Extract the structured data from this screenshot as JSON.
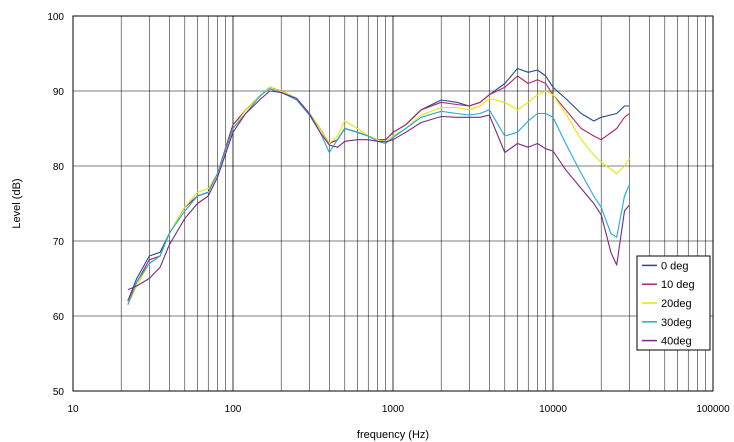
{
  "chart_data": {
    "type": "line",
    "title": "",
    "xlabel": "frequency (Hz)",
    "ylabel": "Level (dB)",
    "x_scale": "log",
    "xlim": [
      10,
      100000
    ],
    "ylim": [
      50,
      100
    ],
    "grid": true,
    "legend_position": "bottom-right",
    "x_ticks": [
      10,
      100,
      1000,
      10000,
      100000
    ],
    "x_tick_labels": [
      "10",
      "100",
      "1000",
      "10000",
      "100000"
    ],
    "y_ticks": [
      50,
      60,
      70,
      80,
      90,
      100
    ],
    "y_tick_labels": [
      "50",
      "60",
      "70",
      "80",
      "90",
      "100"
    ],
    "series": [
      {
        "name": "0 deg",
        "color": "#1f4e8c",
        "points": [
          [
            22,
            62
          ],
          [
            25,
            65
          ],
          [
            30,
            68
          ],
          [
            35,
            68.5
          ],
          [
            40,
            71
          ],
          [
            50,
            74.5
          ],
          [
            60,
            76
          ],
          [
            70,
            76.5
          ],
          [
            80,
            79
          ],
          [
            100,
            85.5
          ],
          [
            120,
            87.5
          ],
          [
            150,
            89.5
          ],
          [
            170,
            90.5
          ],
          [
            200,
            90
          ],
          [
            250,
            89
          ],
          [
            300,
            87
          ],
          [
            350,
            85
          ],
          [
            400,
            83
          ],
          [
            450,
            83.5
          ],
          [
            500,
            85
          ],
          [
            600,
            84.5
          ],
          [
            700,
            84
          ],
          [
            800,
            83.5
          ],
          [
            900,
            83.5
          ],
          [
            1000,
            84.5
          ],
          [
            1200,
            85.5
          ],
          [
            1500,
            87.5
          ],
          [
            2000,
            88.8
          ],
          [
            2500,
            88.5
          ],
          [
            3000,
            88
          ],
          [
            3500,
            88.5
          ],
          [
            4000,
            89.5
          ],
          [
            5000,
            91
          ],
          [
            6000,
            93
          ],
          [
            7000,
            92.5
          ],
          [
            8000,
            92.8
          ],
          [
            9000,
            92
          ],
          [
            10000,
            90.5
          ],
          [
            12000,
            89
          ],
          [
            15000,
            87
          ],
          [
            18000,
            86
          ],
          [
            20000,
            86.5
          ],
          [
            25000,
            87
          ],
          [
            28000,
            88
          ],
          [
            30000,
            88
          ]
        ]
      },
      {
        "name": "10 deg",
        "color": "#b3256b",
        "points": [
          [
            22,
            62
          ],
          [
            25,
            64.5
          ],
          [
            30,
            67.5
          ],
          [
            35,
            68
          ],
          [
            40,
            71
          ],
          [
            50,
            74.5
          ],
          [
            60,
            76
          ],
          [
            70,
            76.5
          ],
          [
            80,
            79
          ],
          [
            100,
            85.5
          ],
          [
            120,
            87.5
          ],
          [
            150,
            89.5
          ],
          [
            170,
            90.5
          ],
          [
            200,
            90
          ],
          [
            250,
            89
          ],
          [
            300,
            87
          ],
          [
            350,
            85
          ],
          [
            400,
            83
          ],
          [
            450,
            83.5
          ],
          [
            500,
            85
          ],
          [
            600,
            84.5
          ],
          [
            700,
            84
          ],
          [
            800,
            83.5
          ],
          [
            900,
            83.5
          ],
          [
            1000,
            84.5
          ],
          [
            1200,
            85.5
          ],
          [
            1500,
            87.5
          ],
          [
            2000,
            88.5
          ],
          [
            2500,
            88.2
          ],
          [
            3000,
            88
          ],
          [
            3500,
            88.5
          ],
          [
            4000,
            89.5
          ],
          [
            5000,
            90.5
          ],
          [
            6000,
            92
          ],
          [
            7000,
            91
          ],
          [
            8000,
            91.5
          ],
          [
            9000,
            91
          ],
          [
            10000,
            89.5
          ],
          [
            12000,
            87.5
          ],
          [
            15000,
            85
          ],
          [
            18000,
            84
          ],
          [
            20000,
            83.5
          ],
          [
            25000,
            85
          ],
          [
            28000,
            86.5
          ],
          [
            30000,
            87
          ]
        ]
      },
      {
        "name": "20deg",
        "color": "#e6e600",
        "points": [
          [
            22,
            61.5
          ],
          [
            25,
            64
          ],
          [
            30,
            67
          ],
          [
            35,
            68
          ],
          [
            40,
            71
          ],
          [
            50,
            74.5
          ],
          [
            60,
            76.5
          ],
          [
            70,
            77
          ],
          [
            80,
            79
          ],
          [
            100,
            85
          ],
          [
            120,
            87.5
          ],
          [
            150,
            89.5
          ],
          [
            170,
            90.5
          ],
          [
            200,
            90
          ],
          [
            250,
            89
          ],
          [
            300,
            87
          ],
          [
            350,
            85
          ],
          [
            400,
            83
          ],
          [
            450,
            84
          ],
          [
            500,
            86
          ],
          [
            600,
            85
          ],
          [
            700,
            84
          ],
          [
            800,
            83.5
          ],
          [
            900,
            83.2
          ],
          [
            1000,
            84
          ],
          [
            1200,
            85
          ],
          [
            1500,
            86.8
          ],
          [
            2000,
            87.8
          ],
          [
            2500,
            87.8
          ],
          [
            3000,
            87.5
          ],
          [
            3500,
            88
          ],
          [
            4000,
            89
          ],
          [
            5000,
            88.5
          ],
          [
            6000,
            87.5
          ],
          [
            7000,
            88.5
          ],
          [
            8000,
            89.5
          ],
          [
            9000,
            90
          ],
          [
            10000,
            89.5
          ],
          [
            12000,
            87
          ],
          [
            15000,
            83.5
          ],
          [
            18000,
            81.5
          ],
          [
            20000,
            80.5
          ],
          [
            25000,
            79
          ],
          [
            28000,
            80
          ],
          [
            30000,
            81
          ]
        ]
      },
      {
        "name": "30deg",
        "color": "#22aadd",
        "points": [
          [
            22,
            61.5
          ],
          [
            25,
            64.5
          ],
          [
            30,
            67
          ],
          [
            35,
            68
          ],
          [
            40,
            71
          ],
          [
            50,
            74
          ],
          [
            60,
            76
          ],
          [
            70,
            76.5
          ],
          [
            80,
            79
          ],
          [
            100,
            85
          ],
          [
            120,
            87
          ],
          [
            150,
            89.5
          ],
          [
            170,
            90.3
          ],
          [
            200,
            89.8
          ],
          [
            250,
            88.8
          ],
          [
            300,
            86.8
          ],
          [
            350,
            84.5
          ],
          [
            400,
            81.8
          ],
          [
            450,
            83.5
          ],
          [
            500,
            85
          ],
          [
            600,
            84.5
          ],
          [
            700,
            84
          ],
          [
            800,
            83.3
          ],
          [
            900,
            83
          ],
          [
            1000,
            83.8
          ],
          [
            1200,
            85
          ],
          [
            1500,
            86.5
          ],
          [
            2000,
            87.3
          ],
          [
            2500,
            87
          ],
          [
            3000,
            86.8
          ],
          [
            3500,
            87
          ],
          [
            4000,
            87.5
          ],
          [
            5000,
            84
          ],
          [
            6000,
            84.5
          ],
          [
            7000,
            86
          ],
          [
            8000,
            87
          ],
          [
            9000,
            87
          ],
          [
            10000,
            86.5
          ],
          [
            12000,
            83
          ],
          [
            15000,
            79
          ],
          [
            18000,
            76
          ],
          [
            20000,
            74.5
          ],
          [
            23000,
            71
          ],
          [
            25000,
            70.5
          ],
          [
            28000,
            76
          ],
          [
            30000,
            77.5
          ]
        ]
      },
      {
        "name": "40deg",
        "color": "#7a2a80",
        "points": [
          [
            22,
            63.5
          ],
          [
            25,
            64
          ],
          [
            30,
            65
          ],
          [
            35,
            66.5
          ],
          [
            40,
            69.5
          ],
          [
            50,
            73
          ],
          [
            60,
            75
          ],
          [
            70,
            76
          ],
          [
            80,
            78.5
          ],
          [
            100,
            84.5
          ],
          [
            120,
            87
          ],
          [
            150,
            89
          ],
          [
            170,
            90
          ],
          [
            200,
            89.8
          ],
          [
            250,
            89
          ],
          [
            300,
            87
          ],
          [
            350,
            84.5
          ],
          [
            400,
            82.8
          ],
          [
            450,
            82.5
          ],
          [
            500,
            83.3
          ],
          [
            600,
            83.5
          ],
          [
            700,
            83.5
          ],
          [
            800,
            83.3
          ],
          [
            900,
            83.2
          ],
          [
            1000,
            83.5
          ],
          [
            1200,
            84.5
          ],
          [
            1500,
            85.8
          ],
          [
            2000,
            86.6
          ],
          [
            2500,
            86.5
          ],
          [
            3000,
            86.5
          ],
          [
            3500,
            86.5
          ],
          [
            4000,
            86.8
          ],
          [
            5000,
            81.8
          ],
          [
            6000,
            83
          ],
          [
            7000,
            82.5
          ],
          [
            8000,
            83
          ],
          [
            9000,
            82.3
          ],
          [
            10000,
            82
          ],
          [
            12000,
            79.5
          ],
          [
            15000,
            77
          ],
          [
            18000,
            75
          ],
          [
            20000,
            73.5
          ],
          [
            23000,
            68.5
          ],
          [
            25000,
            66.8
          ],
          [
            28000,
            74
          ],
          [
            30000,
            74.8
          ]
        ]
      }
    ]
  }
}
